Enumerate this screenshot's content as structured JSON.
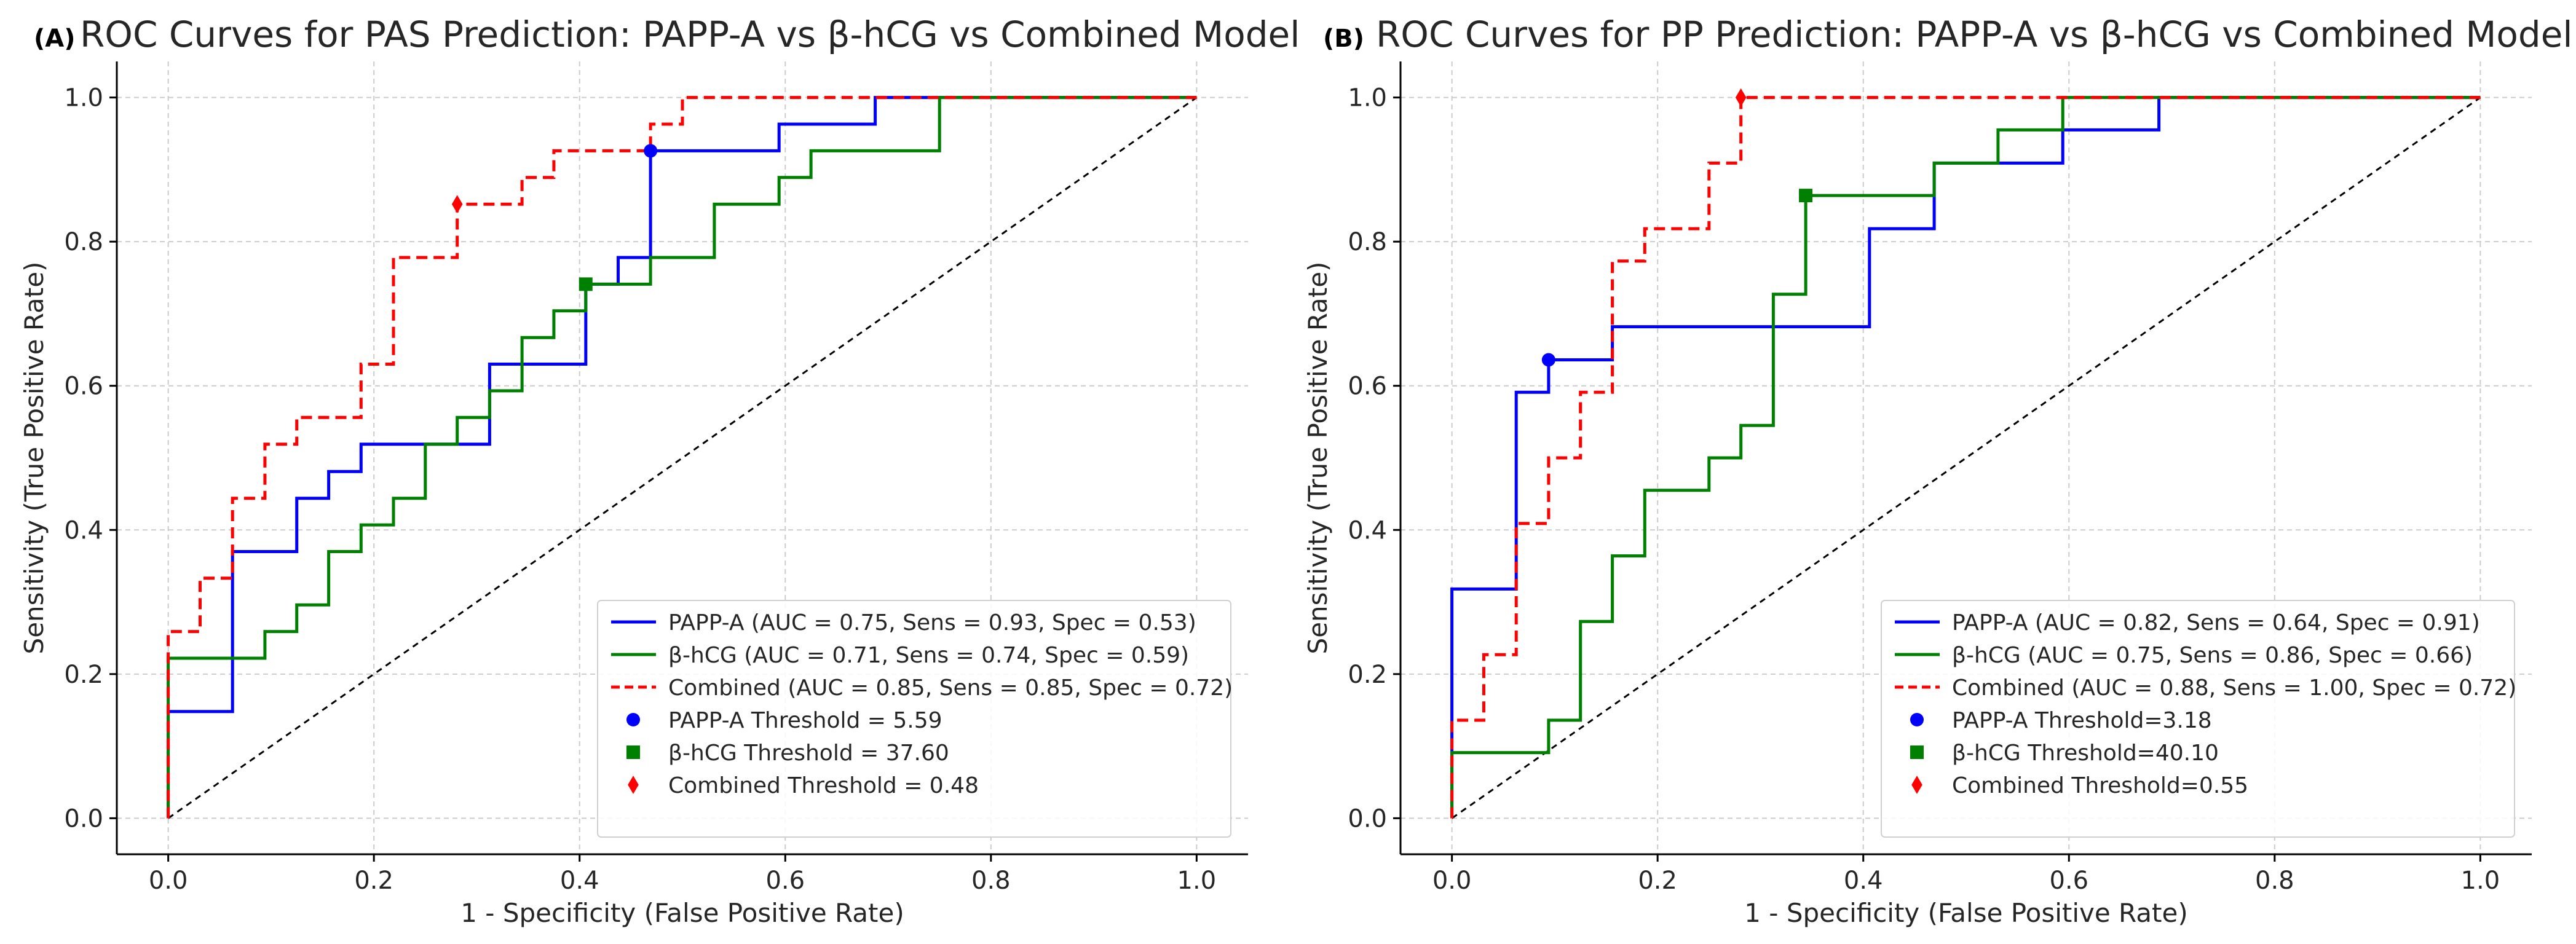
{
  "figure_title": "ROC curves for PAS and PP prediction",
  "colors": {
    "papp_a": "#0000ff",
    "b_hcg": "#008000",
    "combined": "#ff0000",
    "diagonal": "#000000",
    "grid": "#cccccc",
    "axis": "#000000",
    "text": "#262626"
  },
  "chart_data": [
    {
      "type": "line",
      "panel_label": "(A)",
      "title": "ROC Curves for PAS Prediction: PAPP-A vs β-hCG vs Combined Model",
      "xlabel": "1 - Specificity (False Positive Rate)",
      "ylabel": "Sensitivity (True Positive Rate)",
      "xlim": [
        -0.05,
        1.05
      ],
      "ylim": [
        -0.05,
        1.05
      ],
      "xticks": [
        0.0,
        0.2,
        0.4,
        0.6,
        0.8,
        1.0
      ],
      "yticks": [
        0.0,
        0.2,
        0.4,
        0.6,
        0.8,
        1.0
      ],
      "tick_labels": [
        "0.0",
        "0.2",
        "0.4",
        "0.6",
        "0.8",
        "1.0"
      ],
      "grid": true,
      "legend_position": "lower-right",
      "series": [
        {
          "key": "papp_a",
          "name": "PAPP-A (AUC = 0.75, Sens = 0.93, Spec = 0.53)",
          "style": "solid",
          "x": [
            0,
            0,
            0.0625,
            0.0625,
            0.125,
            0.125,
            0.156,
            0.156,
            0.1875,
            0.1875,
            0.25,
            0.25,
            0.3125,
            0.3125,
            0.406,
            0.406,
            0.4375,
            0.4375,
            0.469,
            0.469,
            0.594,
            0.594,
            0.6875,
            0.6875,
            1.0
          ],
          "y": [
            0,
            0.148,
            0.148,
            0.37,
            0.37,
            0.444,
            0.444,
            0.481,
            0.481,
            0.519,
            0.519,
            0.519,
            0.519,
            0.63,
            0.63,
            0.741,
            0.741,
            0.778,
            0.778,
            0.926,
            0.926,
            0.963,
            0.963,
            1.0,
            1.0
          ]
        },
        {
          "key": "b_hcg",
          "name": "β-hCG (AUC = 0.71, Sens = 0.74, Spec = 0.59)",
          "style": "solid",
          "x": [
            0,
            0,
            0.094,
            0.094,
            0.125,
            0.125,
            0.156,
            0.156,
            0.1875,
            0.1875,
            0.219,
            0.219,
            0.25,
            0.25,
            0.281,
            0.281,
            0.3125,
            0.3125,
            0.344,
            0.344,
            0.375,
            0.375,
            0.406,
            0.406,
            0.469,
            0.469,
            0.531,
            0.531,
            0.594,
            0.594,
            0.625,
            0.625,
            0.75,
            0.75,
            1.0
          ],
          "y": [
            0,
            0.222,
            0.222,
            0.259,
            0.259,
            0.296,
            0.296,
            0.37,
            0.37,
            0.407,
            0.407,
            0.444,
            0.444,
            0.519,
            0.519,
            0.556,
            0.556,
            0.593,
            0.593,
            0.667,
            0.667,
            0.704,
            0.704,
            0.741,
            0.741,
            0.778,
            0.778,
            0.852,
            0.852,
            0.889,
            0.889,
            0.926,
            0.926,
            1.0,
            1.0
          ]
        },
        {
          "key": "combined",
          "name": "Combined (AUC = 0.85, Sens = 0.85, Spec = 0.72)",
          "style": "dashed",
          "x": [
            0,
            0,
            0.031,
            0.031,
            0.0625,
            0.0625,
            0.094,
            0.094,
            0.125,
            0.125,
            0.1875,
            0.1875,
            0.219,
            0.219,
            0.281,
            0.281,
            0.344,
            0.344,
            0.375,
            0.375,
            0.469,
            0.469,
            0.5,
            0.5,
            1.0
          ],
          "y": [
            0,
            0.259,
            0.259,
            0.333,
            0.333,
            0.444,
            0.444,
            0.519,
            0.519,
            0.556,
            0.556,
            0.63,
            0.63,
            0.778,
            0.778,
            0.852,
            0.852,
            0.889,
            0.889,
            0.926,
            0.926,
            0.963,
            0.963,
            1.0,
            1.0
          ]
        }
      ],
      "thresholds": [
        {
          "key": "papp_a",
          "name": "PAPP-A Threshold =  5.59",
          "marker": "circle",
          "x": 0.469,
          "y": 0.926
        },
        {
          "key": "b_hcg",
          "name": "β-hCG Threshold = 37.60",
          "marker": "square",
          "x": 0.406,
          "y": 0.741
        },
        {
          "key": "combined",
          "name": "Combined Threshold = 0.48",
          "marker": "diamond",
          "x": 0.281,
          "y": 0.852
        }
      ]
    },
    {
      "type": "line",
      "panel_label": "(B)",
      "title": "ROC Curves for PP Prediction: PAPP-A vs β-hCG vs Combined Model",
      "xlabel": "1 - Specificity (False Positive Rate)",
      "ylabel": "Sensitivity (True Positive Rate)",
      "xlim": [
        -0.05,
        1.05
      ],
      "ylim": [
        -0.05,
        1.05
      ],
      "xticks": [
        0.0,
        0.2,
        0.4,
        0.6,
        0.8,
        1.0
      ],
      "yticks": [
        0.0,
        0.2,
        0.4,
        0.6,
        0.8,
        1.0
      ],
      "tick_labels": [
        "0.0",
        "0.2",
        "0.4",
        "0.6",
        "0.8",
        "1.0"
      ],
      "grid": true,
      "legend_position": "lower-right",
      "series": [
        {
          "key": "papp_a",
          "name": "PAPP-A (AUC = 0.82, Sens = 0.64, Spec = 0.91)",
          "style": "solid",
          "x": [
            0,
            0,
            0.0625,
            0.0625,
            0.094,
            0.094,
            0.156,
            0.156,
            0.406,
            0.406,
            0.469,
            0.469,
            0.594,
            0.594,
            0.6875,
            0.6875,
            1.0
          ],
          "y": [
            0,
            0.318,
            0.318,
            0.591,
            0.591,
            0.636,
            0.636,
            0.682,
            0.682,
            0.818,
            0.818,
            0.909,
            0.909,
            0.955,
            0.955,
            1.0,
            1.0
          ]
        },
        {
          "key": "b_hcg",
          "name": "β-hCG (AUC = 0.75, Sens = 0.86, Spec = 0.66)",
          "style": "solid",
          "x": [
            0,
            0,
            0.094,
            0.094,
            0.125,
            0.125,
            0.156,
            0.156,
            0.1875,
            0.1875,
            0.219,
            0.219,
            0.25,
            0.25,
            0.281,
            0.281,
            0.3125,
            0.3125,
            0.344,
            0.344,
            0.469,
            0.469,
            0.531,
            0.531,
            0.594,
            0.594,
            1.0
          ],
          "y": [
            0,
            0.091,
            0.091,
            0.136,
            0.136,
            0.273,
            0.273,
            0.364,
            0.364,
            0.455,
            0.455,
            0.455,
            0.455,
            0.5,
            0.5,
            0.545,
            0.545,
            0.727,
            0.727,
            0.864,
            0.864,
            0.909,
            0.909,
            0.955,
            0.955,
            1.0,
            1.0
          ]
        },
        {
          "key": "combined",
          "name": "Combined (AUC = 0.88, Sens = 1.00, Spec = 0.72)",
          "style": "dashed",
          "x": [
            0,
            0,
            0.031,
            0.031,
            0.0625,
            0.0625,
            0.094,
            0.094,
            0.125,
            0.125,
            0.156,
            0.156,
            0.1875,
            0.1875,
            0.25,
            0.25,
            0.281,
            0.281,
            1.0
          ],
          "y": [
            0,
            0.136,
            0.136,
            0.227,
            0.227,
            0.409,
            0.409,
            0.5,
            0.5,
            0.591,
            0.591,
            0.773,
            0.773,
            0.818,
            0.818,
            0.909,
            0.909,
            1.0,
            1.0
          ]
        }
      ],
      "thresholds": [
        {
          "key": "papp_a",
          "name": "PAPP-A Threshold=3.18",
          "marker": "circle",
          "x": 0.094,
          "y": 0.636
        },
        {
          "key": "b_hcg",
          "name": "β-hCG Threshold=40.10",
          "marker": "square",
          "x": 0.344,
          "y": 0.864
        },
        {
          "key": "combined",
          "name": "Combined Threshold=0.55",
          "marker": "diamond",
          "x": 0.281,
          "y": 1.0
        }
      ]
    }
  ]
}
